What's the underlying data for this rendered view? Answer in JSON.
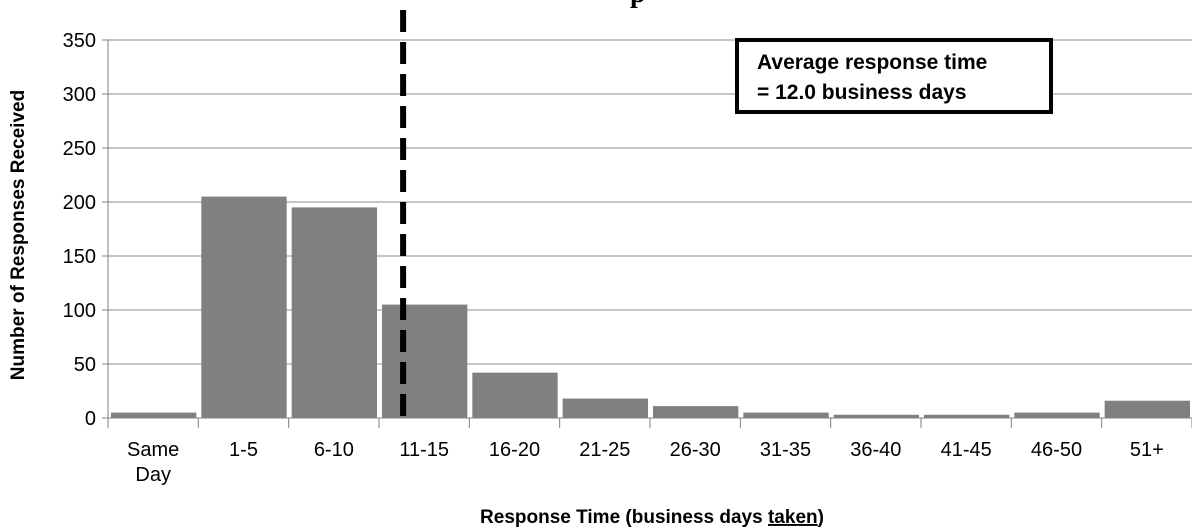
{
  "chart_data": {
    "type": "bar",
    "title_visible_fragment": "p",
    "xlabel_prefix": "Response Time (business days ",
    "xlabel_underlined": "taken",
    "xlabel_suffix": ")",
    "ylabel": "Number of Responses Received",
    "ylim": [
      0,
      350
    ],
    "yticks": [
      "0",
      "50",
      "100",
      "150",
      "200",
      "250",
      "300",
      "350"
    ],
    "categories": [
      [
        "Same",
        "Day"
      ],
      [
        "1-5"
      ],
      [
        "6-10"
      ],
      [
        "11-15"
      ],
      [
        "16-20"
      ],
      [
        "21-25"
      ],
      [
        "26-30"
      ],
      [
        "31-35"
      ],
      [
        "36-40"
      ],
      [
        "41-45"
      ],
      [
        "46-50"
      ],
      [
        "51+"
      ]
    ],
    "values": [
      5,
      205,
      195,
      105,
      42,
      18,
      11,
      5,
      3,
      3,
      5,
      16
    ],
    "average_line_x_days": 12.0,
    "grid": true,
    "bar_color": "#808080",
    "annotation": {
      "line1": "Average response time",
      "line2": "= 12.0 business days"
    }
  }
}
